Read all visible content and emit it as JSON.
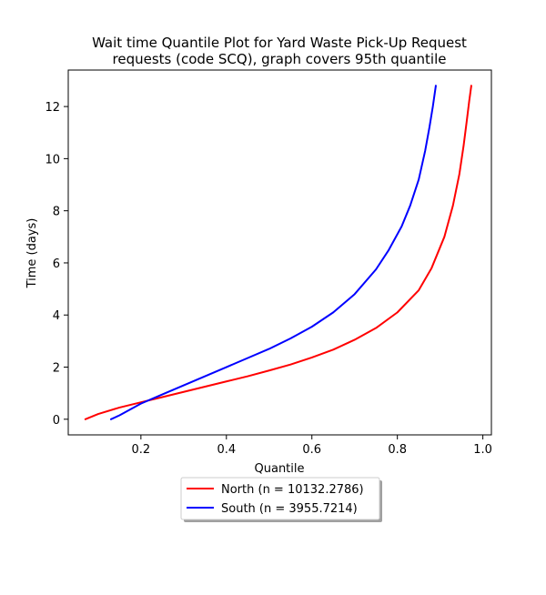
{
  "chart_data": {
    "type": "line",
    "title": "Wait time Quantile Plot for Yard Waste Pick-Up Request\nrequests (code SCQ), graph covers 95th quantile",
    "xlabel": "Quantile",
    "ylabel": "Time (days)",
    "xlim": [
      0.03,
      1.02
    ],
    "ylim": [
      -0.6,
      13.4
    ],
    "xticks": [
      0.2,
      0.4,
      0.6,
      0.8,
      1.0
    ],
    "xtick_labels": [
      "0.2",
      "0.4",
      "0.6",
      "0.8",
      "1.0"
    ],
    "yticks": [
      0,
      2,
      4,
      6,
      8,
      10,
      12
    ],
    "ytick_labels": [
      "0",
      "2",
      "4",
      "6",
      "8",
      "10",
      "12"
    ],
    "grid": false,
    "legend_position": "below-center",
    "series": [
      {
        "name": "North (n = 10132.2786)",
        "color": "#ff0000",
        "x": [
          0.07,
          0.1,
          0.15,
          0.2,
          0.25,
          0.3,
          0.35,
          0.4,
          0.45,
          0.5,
          0.55,
          0.6,
          0.65,
          0.7,
          0.75,
          0.8,
          0.85,
          0.88,
          0.91,
          0.93,
          0.945,
          0.955,
          0.962,
          0.968,
          0.973
        ],
        "y": [
          0.0,
          0.2,
          0.45,
          0.65,
          0.85,
          1.05,
          1.25,
          1.45,
          1.65,
          1.87,
          2.1,
          2.37,
          2.67,
          3.05,
          3.5,
          4.1,
          4.95,
          5.8,
          7.0,
          8.2,
          9.4,
          10.5,
          11.4,
          12.2,
          12.8
        ]
      },
      {
        "name": "South (n = 3955.7214)",
        "color": "#0000ff",
        "x": [
          0.13,
          0.15,
          0.2,
          0.25,
          0.3,
          0.35,
          0.4,
          0.45,
          0.5,
          0.55,
          0.6,
          0.65,
          0.7,
          0.75,
          0.78,
          0.81,
          0.83,
          0.85,
          0.865,
          0.875,
          0.883,
          0.89
        ],
        "y": [
          0.0,
          0.15,
          0.6,
          0.95,
          1.3,
          1.65,
          2.0,
          2.35,
          2.7,
          3.1,
          3.55,
          4.1,
          4.8,
          5.75,
          6.5,
          7.4,
          8.2,
          9.2,
          10.3,
          11.2,
          12.0,
          12.8
        ]
      }
    ]
  }
}
